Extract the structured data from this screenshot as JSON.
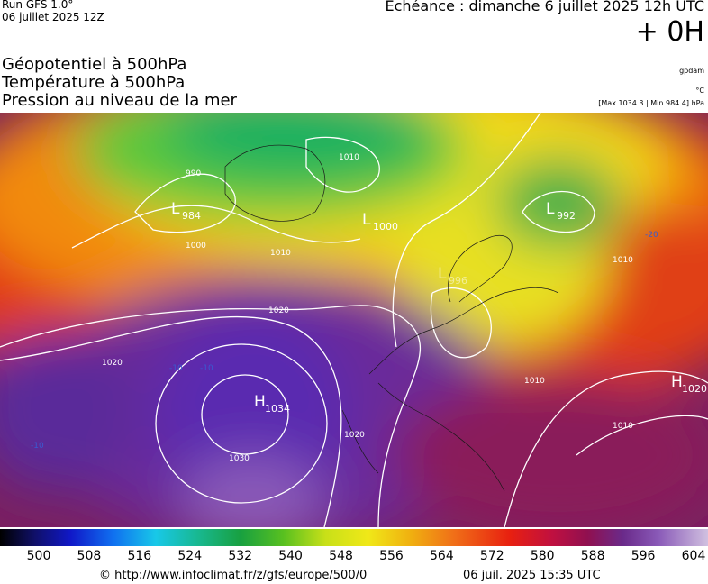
{
  "header": {
    "run": "Run GFS 1.0°",
    "run_date": "06 juillet 2025 12Z",
    "forecast": "Echéance : dimanche 6 juillet 2025 12h UTC",
    "offset": "+ 0H"
  },
  "layers": [
    "Géopotentiel à 500hPa",
    "Température à 500hPa",
    "Pression au niveau de la mer"
  ],
  "units": {
    "geopotential": "gpdam",
    "temperature": "°C",
    "pressure": "[Max 1034.3 | Min 984.4] hPa"
  },
  "map": {
    "centers": [
      {
        "kind": "L",
        "value": 984
      },
      {
        "kind": "L",
        "value": 1000
      },
      {
        "kind": "L",
        "value": 992
      },
      {
        "kind": "L",
        "value": 996
      },
      {
        "kind": "H",
        "value": 1034
      },
      {
        "kind": "H",
        "value": 1020
      }
    ],
    "isobar_labels": [
      1020,
      1020,
      1010,
      1000,
      990,
      1010,
      1030,
      1020,
      1010,
      1010,
      1010
    ],
    "temperature_labels": [
      -10,
      -10,
      -10,
      -20
    ]
  },
  "scale": {
    "ticks": [
      500,
      508,
      516,
      524,
      532,
      540,
      548,
      556,
      564,
      572,
      580,
      588,
      596,
      604
    ]
  },
  "footer": {
    "source": "© http://www.infoclimat.fr/z/gfs/europe/500/0",
    "timestamp": "06 juil. 2025 15:35 UTC"
  }
}
